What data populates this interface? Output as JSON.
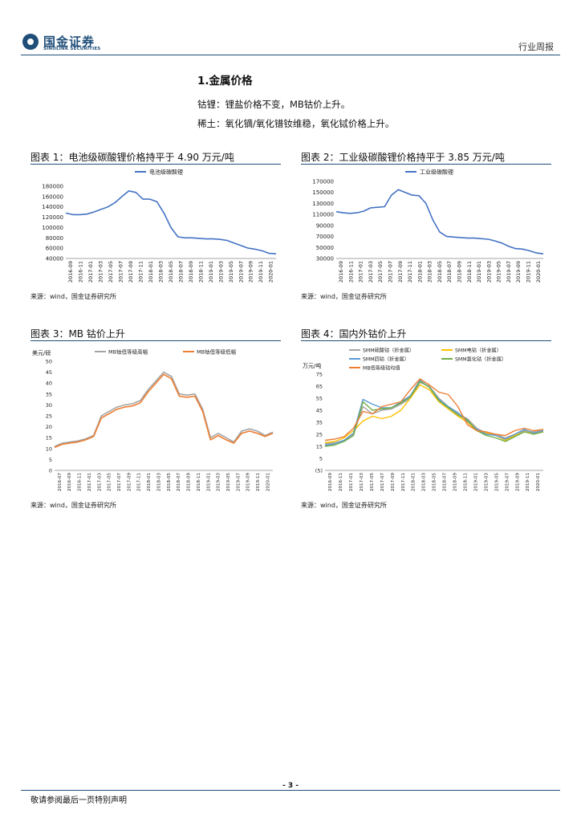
{
  "header": {
    "logo_cn": "国金证券",
    "logo_en": "SINOLINK SECURITIES",
    "report_type": "行业周报"
  },
  "section": {
    "title": "1.金属价格",
    "para1": "钴锂：锂盐价格不变，MB钴价上升。",
    "para2": "稀土：氧化镝/氧化镨钕维稳，氧化铽价格上升。"
  },
  "figures": {
    "fig1_title": "图表 1：电池级碳酸锂价格持平于 4.90 万元/吨",
    "fig2_title": "图表 2：工业级碳酸锂价格持平于 3.85 万元/吨",
    "fig3_title": "图表 3：MB 钴价上升",
    "fig4_title": "图表 4：国内外钴价上升",
    "source": "来源：wind，国金证券研究所"
  },
  "footer": {
    "page": "- 3 -",
    "note": "敬请参阅最后一页特别声明"
  },
  "colors": {
    "brand": "#1f4e79",
    "series_blue": "#4472c4",
    "series_gray": "#a5a5a5",
    "series_orange": "#ed7d31",
    "series_yellow": "#ffc000",
    "series_lightblue": "#5b9bd5",
    "series_green": "#70ad47"
  },
  "chart_data": [
    {
      "id": "c1",
      "type": "line",
      "title": "电池级碳酸锂",
      "ylim": [
        40000,
        180000
      ],
      "yticks": [
        40000,
        60000,
        80000,
        100000,
        120000,
        140000,
        160000,
        180000
      ],
      "ytick_labels": [
        "40000",
        "60000",
        "80000",
        "100000",
        "120000",
        "140000",
        "160000",
        "180000"
      ],
      "xlabels": [
        "2016-09",
        "2016-11",
        "2017-01",
        "2017-03",
        "2017-05",
        "2017-07",
        "2017-09",
        "2017-11",
        "2018-01",
        "2018-03",
        "2018-05",
        "2018-07",
        "2018-09",
        "2018-11",
        "2019-01",
        "2019-03",
        "2019-05",
        "2019-07",
        "2019-09",
        "2019-11",
        "2020-01"
      ],
      "series": [
        {
          "name": "电池级碳酸锂",
          "color": "#4472c4",
          "values": [
            128000,
            125000,
            125000,
            126000,
            130000,
            135000,
            140000,
            148000,
            160000,
            171000,
            168000,
            155000,
            155000,
            150000,
            128000,
            100000,
            82000,
            80000,
            80000,
            79000,
            78000,
            78000,
            77000,
            75000,
            70000,
            65000,
            60000,
            58000,
            55000,
            50000,
            49000
          ]
        }
      ]
    },
    {
      "id": "c2",
      "type": "line",
      "title": "工业级碳酸锂",
      "ylim": [
        30000,
        170000
      ],
      "yticks": [
        30000,
        50000,
        70000,
        90000,
        110000,
        130000,
        150000,
        170000
      ],
      "ytick_labels": [
        "30000",
        "50000",
        "70000",
        "90000",
        "110000",
        "130000",
        "150000",
        "170000"
      ],
      "xlabels": [
        "2016-09",
        "2016-11",
        "2017-01",
        "2017-03",
        "2017-05",
        "2017-07",
        "2017-09",
        "2017-11",
        "2018-01",
        "2018-03",
        "2018-05",
        "2018-07",
        "2018-09",
        "2018-11",
        "2019-01",
        "2019-03",
        "2019-05",
        "2019-07",
        "2019-09",
        "2019-11",
        "2020-01"
      ],
      "series": [
        {
          "name": "工业级碳酸锂",
          "color": "#4472c4",
          "values": [
            115000,
            113000,
            112000,
            113000,
            116000,
            122000,
            123000,
            124000,
            145000,
            155000,
            150000,
            145000,
            144000,
            130000,
            100000,
            78000,
            70000,
            69000,
            68000,
            67000,
            67000,
            66000,
            65000,
            62000,
            58000,
            52000,
            48000,
            47000,
            44000,
            40000,
            38500
          ]
        }
      ]
    },
    {
      "id": "c3",
      "type": "line",
      "ylabel": "美元/磅",
      "ylim": [
        0,
        50
      ],
      "yticks": [
        0,
        5,
        10,
        15,
        20,
        25,
        30,
        35,
        40,
        45,
        50
      ],
      "ytick_labels": [
        "0",
        "5",
        "10",
        "15",
        "20",
        "25",
        "30",
        "35",
        "40",
        "45",
        "50"
      ],
      "xlabels": [
        "2016-07",
        "2016-09",
        "2016-11",
        "2017-01",
        "2017-03",
        "2017-05",
        "2017-07",
        "2017-09",
        "2017-11",
        "2018-01",
        "2018-03",
        "2018-05",
        "2018-07",
        "2018-09",
        "2018-11",
        "2019-01",
        "2019-03",
        "2019-05",
        "2019-07",
        "2019-09",
        "2019-11",
        "2020-01"
      ],
      "series": [
        {
          "name": "MB钴低等级高幅",
          "color": "#a5a5a5",
          "values": [
            11,
            12.5,
            13,
            13.5,
            14.5,
            16,
            25,
            27,
            29,
            30,
            30.5,
            32,
            37,
            41,
            45,
            43,
            35,
            34.5,
            35,
            28,
            15,
            17,
            15,
            13,
            18,
            19,
            18,
            16,
            17.5
          ]
        },
        {
          "name": "MB钴低等级低幅",
          "color": "#ed7d31",
          "values": [
            10.5,
            12,
            12.5,
            13,
            14,
            15.5,
            24,
            26,
            28,
            29,
            29.5,
            31,
            36,
            40,
            44,
            42,
            34,
            33.5,
            34,
            27,
            14,
            16,
            14,
            12.5,
            17,
            18,
            17,
            15.5,
            17
          ]
        }
      ]
    },
    {
      "id": "c4",
      "type": "line",
      "ylabel": "万元/吨",
      "ylim": [
        -5,
        75
      ],
      "yticks": [
        -5,
        5,
        15,
        25,
        35,
        45,
        55,
        65,
        75
      ],
      "ytick_labels": [
        "(5)",
        "5",
        "15",
        "25",
        "35",
        "45",
        "55",
        "65",
        "75"
      ],
      "xlabels": [
        "2016-09",
        "2016-11",
        "2017-01",
        "2017-03",
        "2017-05",
        "2017-07",
        "2017-09",
        "2017-11",
        "2018-01",
        "2018-03",
        "2018-05",
        "2018-07",
        "2018-09",
        "2018-11",
        "2019-01",
        "2019-03",
        "2019-05",
        "2019-07",
        "2019-09",
        "2019-11",
        "2020-01"
      ],
      "legend": [
        "SMM硫酸钴（折金属）",
        "SMM电钴（折金属）",
        "SMM四钴（折金属）",
        "SMM氯化钴（折金属）",
        "MB低等级钴均值"
      ],
      "series": [
        {
          "name": "SMM硫酸钴（折金属）",
          "color": "#a5a5a5",
          "values": [
            17,
            18,
            20,
            25,
            48,
            42,
            45,
            46,
            50,
            55,
            68,
            65,
            55,
            48,
            42,
            38,
            30,
            26,
            25,
            22,
            25,
            28,
            27,
            28
          ]
        },
        {
          "name": "SMM电钴（折金属）",
          "color": "#ffc000",
          "values": [
            18,
            19,
            22,
            28,
            36,
            40,
            38,
            40,
            45,
            55,
            66,
            62,
            52,
            46,
            40,
            35,
            28,
            26,
            24,
            20,
            24,
            27,
            26,
            27
          ]
        },
        {
          "name": "SMM四钴（折金属）",
          "color": "#5b9bd5",
          "values": [
            16,
            17,
            20,
            26,
            54,
            50,
            47,
            47,
            52,
            57,
            70,
            64,
            54,
            48,
            43,
            36,
            29,
            25,
            24,
            21,
            25,
            29,
            26,
            28
          ]
        },
        {
          "name": "SMM氯化钴（折金属）",
          "color": "#70ad47",
          "values": [
            15,
            16,
            19,
            24,
            52,
            45,
            46,
            47,
            51,
            56,
            69,
            64,
            53,
            47,
            41,
            37,
            28,
            24,
            22,
            19,
            23,
            27,
            25,
            27
          ]
        },
        {
          "name": "MB低等级钴均值",
          "color": "#ed7d31",
          "values": [
            20,
            21,
            23,
            30,
            44,
            42,
            48,
            50,
            52,
            62,
            71,
            66,
            60,
            58,
            48,
            33,
            28,
            27,
            25,
            24,
            28,
            30,
            28,
            29
          ]
        }
      ]
    }
  ]
}
